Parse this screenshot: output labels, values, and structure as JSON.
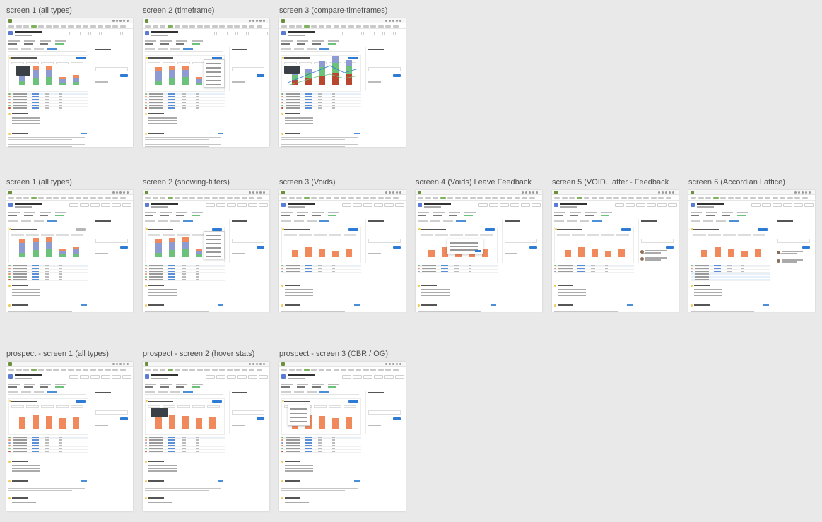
{
  "frames": [
    {
      "label": "screen 1 (all types)"
    },
    {
      "label": "screen 2 (timeframe)"
    },
    {
      "label": "screen 3 (compare-timeframes)"
    },
    {
      "label": "screen 1 (all types)"
    },
    {
      "label": "screen 2 (showing-filters)"
    },
    {
      "label": "screen 3 (Voids)"
    },
    {
      "label": "screen 4 (Voids) Leave Feedback"
    },
    {
      "label": "screen 5 (VOID...atter - Feedback"
    },
    {
      "label": "screen 6 (Accordian Lattice)"
    },
    {
      "label": "prospect - screen 1 (all types)"
    },
    {
      "label": "prospect - screen 2 (hover stats)"
    },
    {
      "label": "prospect - screen 3 (CBR / OG)"
    }
  ],
  "colors": {
    "canvas": "#e9e9e9",
    "accent_blue": "#2e7bd6",
    "bar_orange": "#f08a5d",
    "bar_green": "#6cc27a",
    "bar_purple": "#8e9bd2",
    "bar_red": "#b8472f",
    "nav_green": "#7fb35b"
  }
}
